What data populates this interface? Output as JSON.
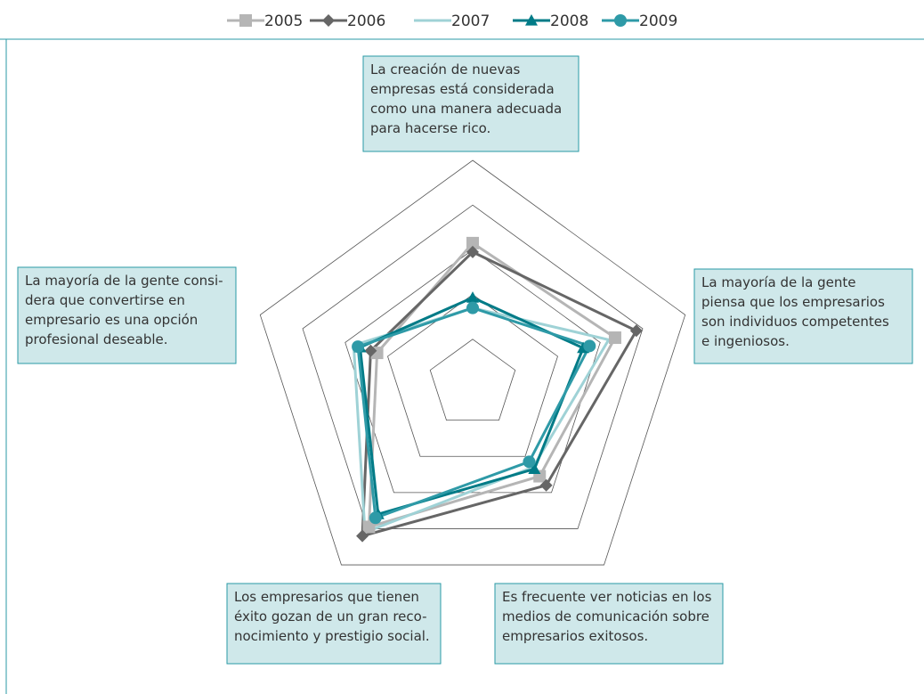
{
  "chart_data": {
    "type": "radar",
    "categories": [
      [
        "La creación de nuevas",
        "empresas está considerada",
        "como una manera adecuada",
        "para hacerse rico."
      ],
      [
        "La mayoría de la gente",
        "piensa que los empresarios",
        "son individuos competentes",
        "e ingeniosos."
      ],
      [
        "Es frecuente ver noticias en los",
        "medios de comunicación sobre",
        "empresarios exitosos."
      ],
      [
        "Los empresarios que tienen",
        "éxito gozan de un gran reco-",
        "nocimiento y prestigio social."
      ],
      [
        "La mayoría de la gente consi-",
        "dera que convertirse en",
        "empresario es una opción",
        "profesional deseable."
      ]
    ],
    "series": [
      {
        "name": "2005",
        "color": "#b5b5b5",
        "marker": "square",
        "values": [
          3.15,
          3.35,
          2.55,
          3.95,
          2.25
        ]
      },
      {
        "name": "2006",
        "color": "#666666",
        "marker": "diamond",
        "values": [
          2.95,
          3.85,
          2.8,
          4.2,
          2.4
        ]
      },
      {
        "name": "2007",
        "color": "#9fd2d6",
        "marker": "none",
        "values": [
          1.7,
          3.2,
          2.3,
          4.1,
          2.8
        ]
      },
      {
        "name": "2008",
        "color": "#007b87",
        "marker": "triangle",
        "values": [
          1.93,
          2.6,
          2.35,
          3.6,
          2.65
        ]
      },
      {
        "name": "2009",
        "color": "#2e9aa7",
        "marker": "circle",
        "values": [
          1.7,
          2.75,
          2.15,
          3.7,
          2.7
        ]
      }
    ],
    "rlim": [
      0,
      5
    ],
    "rticks": [
      1,
      2,
      3,
      4,
      5
    ],
    "grid": true,
    "legend": "top"
  }
}
